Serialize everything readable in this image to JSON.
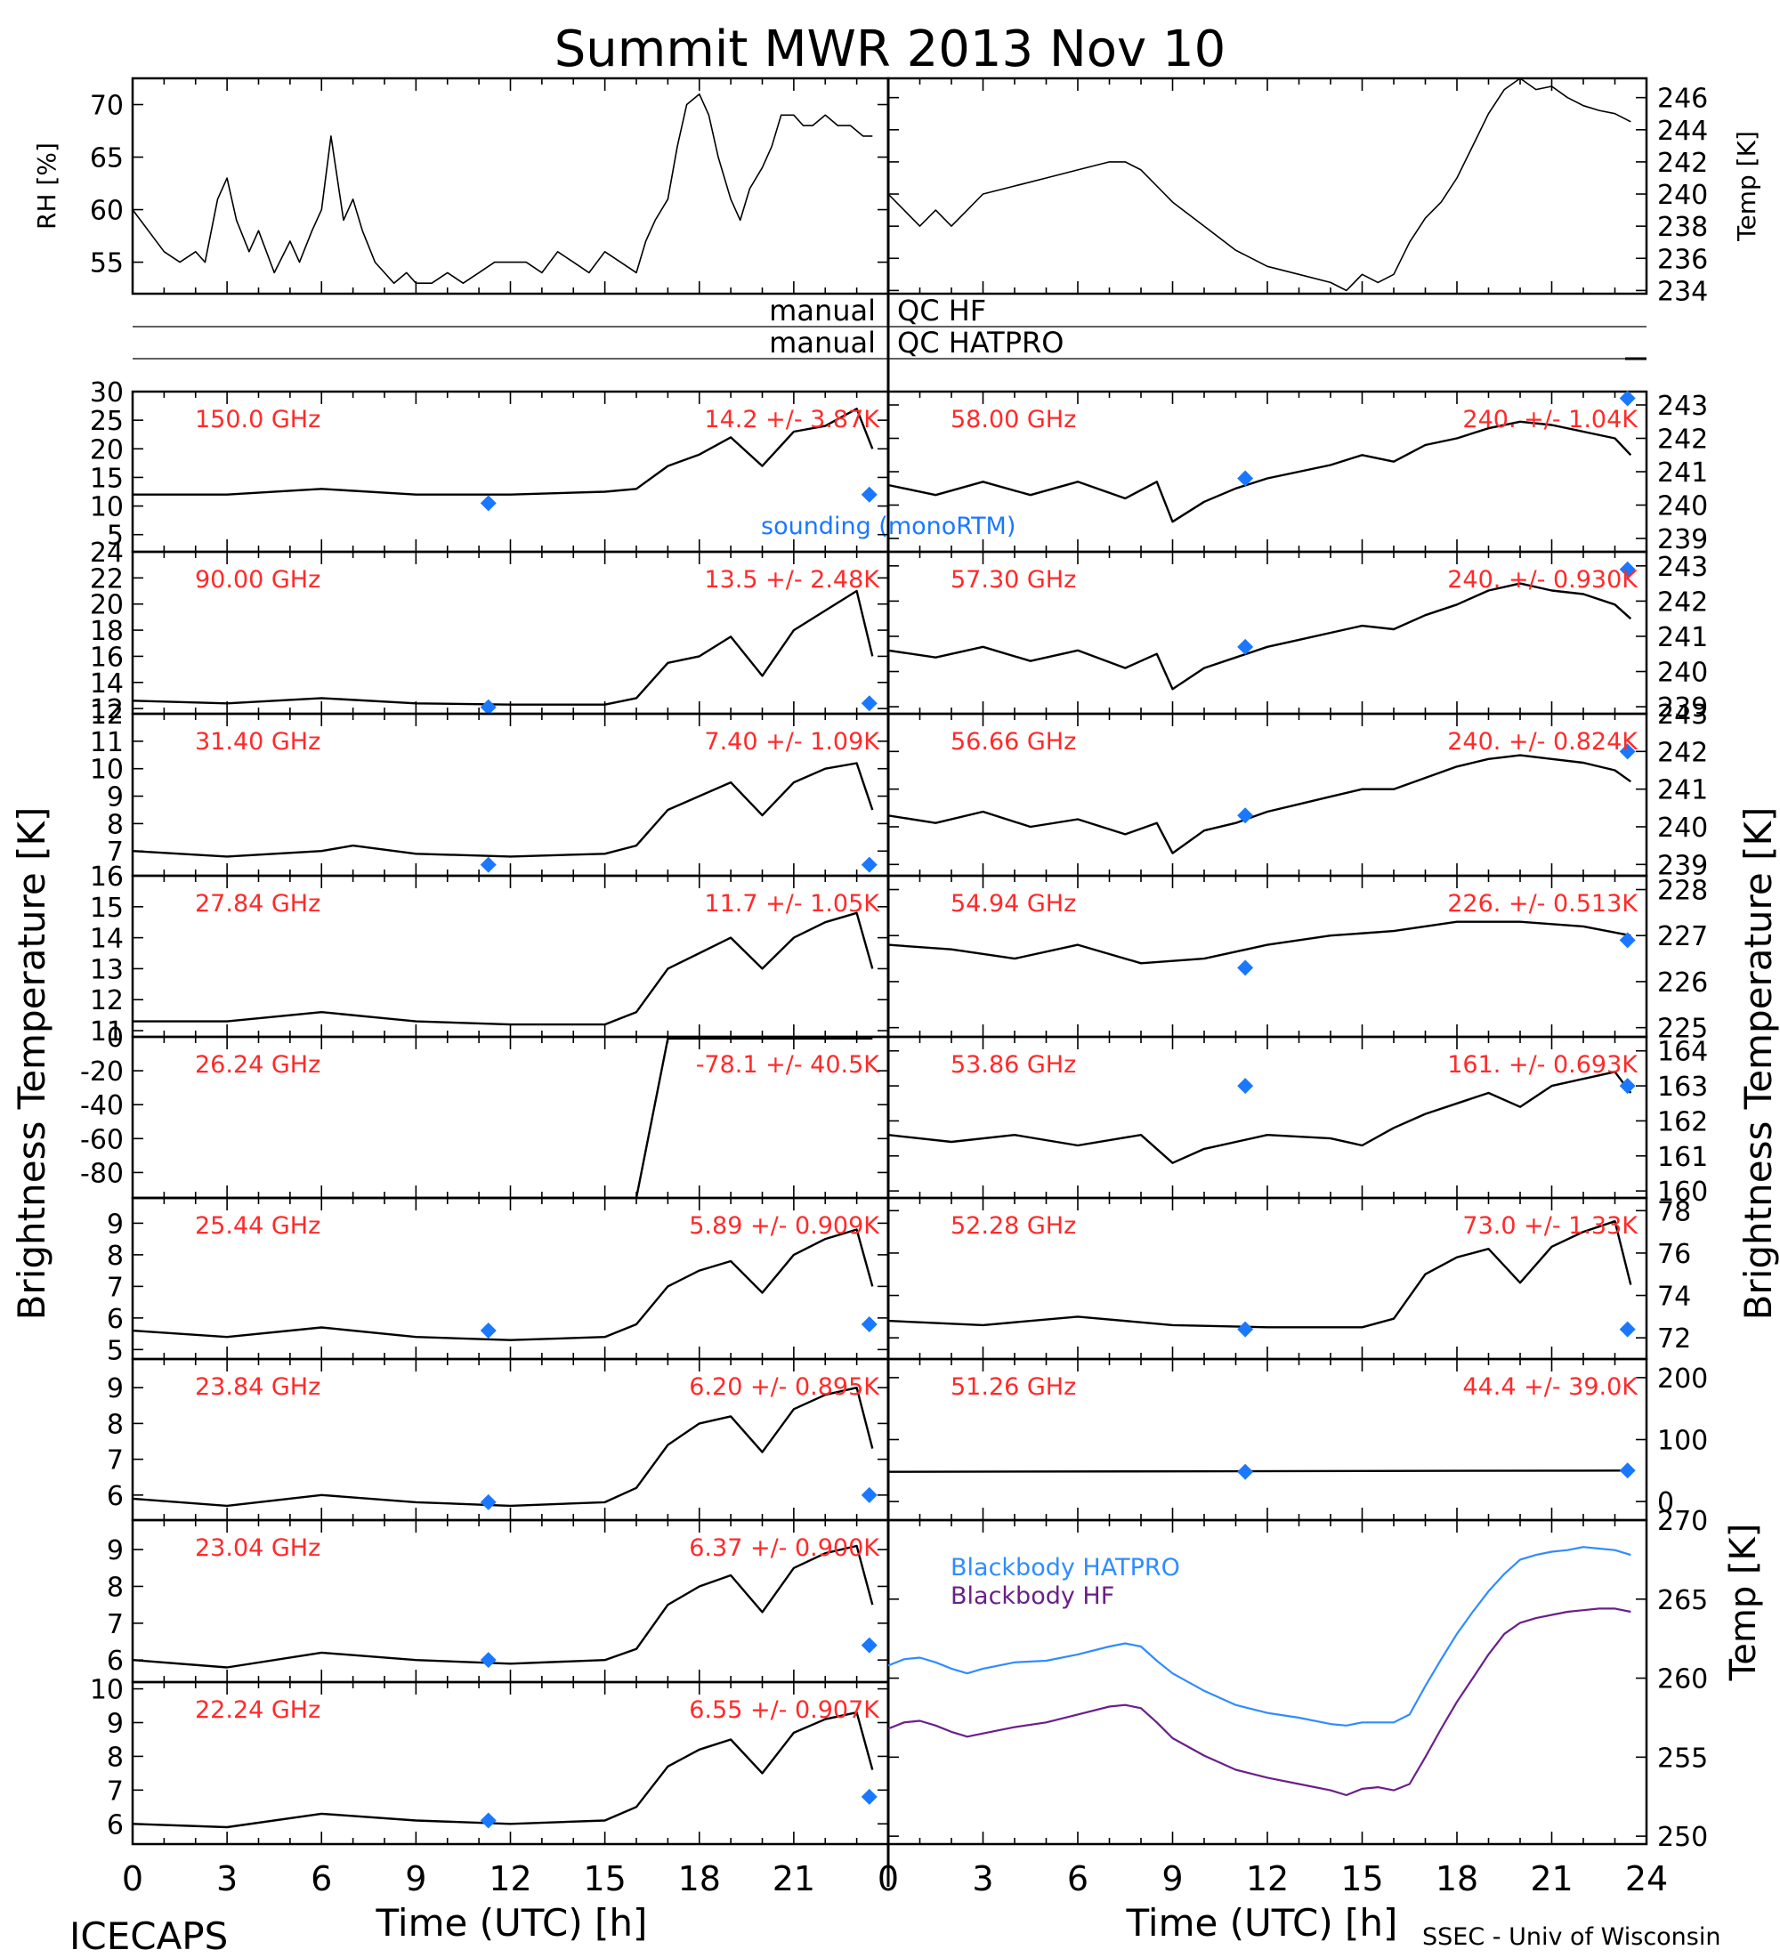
{
  "figure": {
    "title": "Summit MWR 2013 Nov 10",
    "footer_left": "ICECAPS",
    "footer_right": "SSEC - Univ of Wisconsin",
    "xlabel": "Time (UTC) [h]",
    "left_ylabel": "Brightness Temperature [K]",
    "right_ylabel": "Brightness Temperature [K]",
    "x_ticks": [
      "0",
      "3",
      "6",
      "9",
      "12",
      "15",
      "18",
      "21"
    ],
    "x_ticks_right_extra": "24",
    "qc_labels": {
      "manual_hf": "manual",
      "qc_hf": "QC HF",
      "manual_hatpro": "manual",
      "qc_hatpro": "QC HATPRO"
    },
    "sounding_label": "sounding (monoRTM)",
    "colors": {
      "text_red": "#ff2a2a",
      "sounding_blue": "#1a78ff",
      "data": "#000000",
      "bb_hatpro": "#2f8cff",
      "bb_hf": "#6b1f8a"
    }
  },
  "chart_data": [
    {
      "type": "line",
      "panel": "rh",
      "ylabel": "RH [%]",
      "ylim": [
        52,
        72.5
      ],
      "y_ticks": [
        55,
        60,
        65,
        70
      ],
      "xlim": [
        0,
        24
      ],
      "x": [
        0,
        0.5,
        1,
        1.5,
        2,
        2.3,
        2.7,
        3,
        3.3,
        3.7,
        4,
        4.5,
        5,
        5.3,
        5.7,
        6,
        6.3,
        6.7,
        7,
        7.3,
        7.7,
        8,
        8.3,
        8.7,
        9,
        9.5,
        10,
        10.5,
        11,
        11.5,
        12,
        12.5,
        13,
        13.5,
        14,
        14.5,
        15,
        15.5,
        16,
        16.3,
        16.6,
        17,
        17.3,
        17.6,
        18,
        18.3,
        18.6,
        19,
        19.3,
        19.6,
        20,
        20.3,
        20.6,
        21,
        21.3,
        21.6,
        22,
        22.4,
        22.8,
        23.2,
        23.5
      ],
      "values": [
        60,
        58,
        56,
        55,
        56,
        55,
        61,
        63,
        59,
        56,
        58,
        54,
        57,
        55,
        58,
        60,
        67,
        59,
        61,
        58,
        55,
        54,
        53,
        54,
        53,
        53,
        54,
        53,
        54,
        55,
        55,
        55,
        54,
        56,
        55,
        54,
        56,
        55,
        54,
        57,
        59,
        61,
        66,
        70,
        71,
        69,
        65,
        61,
        59,
        62,
        64,
        66,
        69,
        69,
        68,
        68,
        69,
        68,
        68,
        67,
        67
      ]
    },
    {
      "type": "line",
      "panel": "temp",
      "ylabel": "Temp [K]",
      "ylim": [
        233.8,
        247.2
      ],
      "y_ticks": [
        234,
        236,
        238,
        240,
        242,
        244,
        246
      ],
      "xlim": [
        0,
        24
      ],
      "x": [
        0,
        0.5,
        1,
        1.5,
        2,
        2.5,
        3,
        4,
        5,
        6,
        7,
        7.5,
        8,
        8.5,
        9,
        10,
        11,
        12,
        13,
        14,
        14.5,
        15,
        15.5,
        16,
        16.5,
        17,
        17.5,
        18,
        18.5,
        19,
        19.5,
        20,
        20.5,
        21,
        21.5,
        22,
        22.5,
        23,
        23.5
      ],
      "values": [
        240,
        239,
        238,
        239,
        238,
        239,
        240,
        240.5,
        241,
        241.5,
        242,
        242,
        241.5,
        240.5,
        239.5,
        238,
        236.5,
        235.5,
        235,
        234.5,
        234,
        235,
        234.5,
        235,
        237,
        238.5,
        239.5,
        241,
        243,
        245,
        246.5,
        247.2,
        246.5,
        246.7,
        246,
        245.5,
        245.2,
        245,
        244.5
      ]
    },
    {
      "type": "line",
      "panel": "channel",
      "side": "left",
      "label": "150.0 GHz",
      "stat": "14.2 +/- 3.87K",
      "ylim": [
        2,
        30
      ],
      "y_ticks": [
        5,
        10,
        15,
        20,
        25,
        30
      ],
      "x": [
        0,
        3,
        6,
        9,
        12,
        15,
        16,
        17,
        18,
        19,
        20,
        21,
        22,
        23,
        23.5
      ],
      "values": [
        12,
        12,
        13,
        12,
        12,
        12.5,
        13,
        17,
        19,
        22,
        17,
        23,
        24,
        27,
        20
      ],
      "sounding": [
        [
          11.3,
          10.5
        ],
        [
          23.4,
          12
        ]
      ]
    },
    {
      "type": "line",
      "panel": "channel",
      "side": "left",
      "label": "90.00 GHz",
      "stat": "13.5 +/- 2.48K",
      "ylim": [
        11.6,
        24
      ],
      "y_ticks": [
        12,
        14,
        16,
        18,
        20,
        22,
        24
      ],
      "x": [
        0,
        3,
        6,
        9,
        12,
        15,
        16,
        17,
        18,
        19,
        20,
        21,
        22,
        23,
        23.5
      ],
      "values": [
        12.6,
        12.4,
        12.8,
        12.4,
        12.3,
        12.3,
        12.8,
        15.5,
        16,
        17.5,
        14.5,
        18,
        19.5,
        21,
        16
      ],
      "sounding": [
        [
          11.3,
          12.1
        ],
        [
          23.4,
          12.4
        ]
      ]
    },
    {
      "type": "line",
      "panel": "channel",
      "side": "left",
      "label": "31.40 GHz",
      "stat": "7.40 +/- 1.09K",
      "ylim": [
        6.1,
        12
      ],
      "y_ticks": [
        7,
        8,
        9,
        10,
        11,
        12
      ],
      "x": [
        0,
        3,
        6,
        7,
        9,
        12,
        15,
        16,
        17,
        18,
        19,
        20,
        21,
        22,
        23,
        23.5
      ],
      "values": [
        7,
        6.8,
        7,
        7.2,
        6.9,
        6.8,
        6.9,
        7.2,
        8.5,
        9,
        9.5,
        8.3,
        9.5,
        10,
        10.2,
        8.5
      ],
      "sounding": [
        [
          11.3,
          6.5
        ],
        [
          23.4,
          6.5
        ]
      ]
    },
    {
      "type": "line",
      "panel": "channel",
      "side": "left",
      "label": "27.84 GHz",
      "stat": "11.7 +/- 1.05K",
      "ylim": [
        10.8,
        16
      ],
      "y_ticks": [
        11,
        12,
        13,
        14,
        15,
        16
      ],
      "x": [
        0,
        3,
        6,
        9,
        12,
        15,
        16,
        17,
        18,
        19,
        20,
        21,
        22,
        23,
        23.5
      ],
      "values": [
        11.3,
        11.3,
        11.6,
        11.3,
        11.2,
        11.2,
        11.6,
        13,
        13.5,
        14,
        13,
        14,
        14.5,
        14.8,
        13
      ],
      "sounding": []
    },
    {
      "type": "line",
      "panel": "channel",
      "side": "left",
      "label": "26.24 GHz",
      "stat": "-78.1 +/- 40.5K",
      "ylim": [
        -95,
        0
      ],
      "y_ticks": [
        -80,
        -60,
        -40,
        -20,
        0
      ],
      "x": [
        0,
        12,
        16,
        17,
        18,
        20,
        22,
        23.5
      ],
      "values": [
        -95,
        -95,
        -95,
        -1,
        -1,
        -1,
        -1,
        -1
      ],
      "sounding": []
    },
    {
      "type": "line",
      "panel": "channel",
      "side": "left",
      "label": "25.44 GHz",
      "stat": "5.89 +/- 0.909K",
      "ylim": [
        4.7,
        9.8
      ],
      "y_ticks": [
        5,
        6,
        7,
        8,
        9
      ],
      "x": [
        0,
        3,
        6,
        9,
        12,
        15,
        16,
        17,
        18,
        19,
        20,
        21,
        22,
        23,
        23.5
      ],
      "values": [
        5.6,
        5.4,
        5.7,
        5.4,
        5.3,
        5.4,
        5.8,
        7,
        7.5,
        7.8,
        6.8,
        8,
        8.5,
        8.8,
        7
      ],
      "sounding": [
        [
          11.3,
          5.6
        ],
        [
          23.4,
          5.8
        ]
      ]
    },
    {
      "type": "line",
      "panel": "channel",
      "side": "left",
      "label": "23.84 GHz",
      "stat": "6.20 +/- 0.895K",
      "ylim": [
        5.3,
        9.8
      ],
      "y_ticks": [
        6,
        7,
        8,
        9
      ],
      "x": [
        0,
        3,
        6,
        9,
        12,
        15,
        16,
        17,
        18,
        19,
        20,
        21,
        22,
        23,
        23.5
      ],
      "values": [
        5.9,
        5.7,
        6,
        5.8,
        5.7,
        5.8,
        6.2,
        7.4,
        8,
        8.2,
        7.2,
        8.4,
        8.8,
        9,
        7.3
      ],
      "sounding": [
        [
          11.3,
          5.8
        ],
        [
          23.4,
          6
        ]
      ]
    },
    {
      "type": "line",
      "panel": "channel",
      "side": "left",
      "label": "23.04 GHz",
      "stat": "6.37 +/- 0.900K",
      "ylim": [
        5.4,
        9.8
      ],
      "y_ticks": [
        6,
        7,
        8,
        9
      ],
      "x": [
        0,
        3,
        6,
        9,
        12,
        15,
        16,
        17,
        18,
        19,
        20,
        21,
        22,
        23,
        23.5
      ],
      "values": [
        6,
        5.8,
        6.2,
        6,
        5.9,
        6,
        6.3,
        7.5,
        8,
        8.3,
        7.3,
        8.5,
        8.9,
        9.1,
        7.5
      ],
      "sounding": [
        [
          11.3,
          6
        ],
        [
          23.4,
          6.4
        ]
      ]
    },
    {
      "type": "line",
      "panel": "channel",
      "side": "left",
      "label": "22.24 GHz",
      "stat": "6.55 +/- 0.907K",
      "ylim": [
        5.4,
        10.2
      ],
      "y_ticks": [
        6,
        7,
        8,
        9,
        10
      ],
      "x": [
        0,
        3,
        6,
        9,
        12,
        15,
        16,
        17,
        18,
        19,
        20,
        21,
        22,
        23,
        23.5
      ],
      "values": [
        6,
        5.9,
        6.3,
        6.1,
        6,
        6.1,
        6.5,
        7.7,
        8.2,
        8.5,
        7.5,
        8.7,
        9.1,
        9.3,
        7.6
      ],
      "sounding": [
        [
          11.3,
          6.1
        ],
        [
          23.4,
          6.8
        ]
      ]
    },
    {
      "type": "line",
      "panel": "channel",
      "side": "right",
      "label": "58.00 GHz",
      "stat": "240. +/- 1.04K",
      "ylim": [
        238.6,
        243.4
      ],
      "y_ticks": [
        239,
        240,
        241,
        242,
        243
      ],
      "x": [
        0,
        1.5,
        3,
        4.5,
        6,
        7.5,
        8.5,
        9,
        10,
        11,
        12,
        13,
        14,
        15,
        16,
        17,
        18,
        19,
        20,
        21,
        22,
        23,
        23.5
      ],
      "values": [
        240.6,
        240.3,
        240.7,
        240.3,
        240.7,
        240.2,
        240.7,
        239.5,
        240.1,
        240.5,
        240.8,
        241,
        241.2,
        241.5,
        241.3,
        241.8,
        242,
        242.3,
        242.5,
        242.4,
        242.2,
        242,
        241.5
      ],
      "sounding": [
        [
          11.3,
          240.8
        ],
        [
          23.4,
          243.2
        ]
      ]
    },
    {
      "type": "line",
      "panel": "channel",
      "side": "right",
      "label": "57.30 GHz",
      "stat": "240. +/- 0.930K",
      "ylim": [
        238.8,
        243.4
      ],
      "y_ticks": [
        239,
        240,
        241,
        242,
        243
      ],
      "x": [
        0,
        1.5,
        3,
        4.5,
        6,
        7.5,
        8.5,
        9,
        10,
        11,
        12,
        13,
        14,
        15,
        16,
        17,
        18,
        19,
        20,
        21,
        22,
        23,
        23.5
      ],
      "values": [
        240.6,
        240.4,
        240.7,
        240.3,
        240.6,
        240.1,
        240.5,
        239.5,
        240.1,
        240.4,
        240.7,
        240.9,
        241.1,
        241.3,
        241.2,
        241.6,
        241.9,
        242.3,
        242.5,
        242.3,
        242.2,
        241.9,
        241.5
      ],
      "sounding": [
        [
          11.3,
          240.7
        ],
        [
          23.4,
          242.9
        ]
      ]
    },
    {
      "type": "line",
      "panel": "channel",
      "side": "right",
      "label": "56.66 GHz",
      "stat": "240. +/- 0.824K",
      "ylim": [
        238.7,
        243
      ],
      "y_ticks": [
        239,
        240,
        241,
        242,
        243
      ],
      "x": [
        0,
        1.5,
        3,
        4.5,
        6,
        7.5,
        8.5,
        9,
        10,
        11,
        12,
        13,
        14,
        15,
        16,
        17,
        18,
        19,
        20,
        21,
        22,
        23,
        23.5
      ],
      "values": [
        240.3,
        240.1,
        240.4,
        240,
        240.2,
        239.8,
        240.1,
        239.3,
        239.9,
        240.1,
        240.4,
        240.6,
        240.8,
        241,
        241,
        241.3,
        241.6,
        241.8,
        241.9,
        241.8,
        241.7,
        241.5,
        241.2
      ],
      "sounding": [
        [
          11.3,
          240.3
        ],
        [
          23.4,
          242
        ]
      ]
    },
    {
      "type": "line",
      "panel": "channel",
      "side": "right",
      "label": "54.94 GHz",
      "stat": "226. +/- 0.513K",
      "ylim": [
        224.8,
        228.3
      ],
      "y_ticks": [
        225,
        226,
        227,
        228
      ],
      "x": [
        0,
        2,
        4,
        6,
        8,
        10,
        12,
        14,
        16,
        18,
        20,
        22,
        23.5
      ],
      "values": [
        226.8,
        226.7,
        226.5,
        226.8,
        226.4,
        226.5,
        226.8,
        227,
        227.1,
        227.3,
        227.3,
        227.2,
        227
      ],
      "sounding": [
        [
          11.3,
          226.3
        ],
        [
          23.4,
          226.9
        ]
      ]
    },
    {
      "type": "line",
      "panel": "channel",
      "side": "right",
      "label": "53.86 GHz",
      "stat": "161. +/- 0.693K",
      "ylim": [
        159.8,
        164.4
      ],
      "y_ticks": [
        160,
        161,
        162,
        163,
        164
      ],
      "x": [
        0,
        2,
        4,
        6,
        8,
        9,
        10,
        12,
        14,
        15,
        16,
        17,
        18,
        19,
        20,
        21,
        22,
        23,
        23.5
      ],
      "values": [
        161.6,
        161.4,
        161.6,
        161.3,
        161.6,
        160.8,
        161.2,
        161.6,
        161.5,
        161.3,
        161.8,
        162.2,
        162.5,
        162.8,
        162.4,
        163,
        163.2,
        163.4,
        162.8
      ],
      "sounding": [
        [
          11.3,
          163
        ],
        [
          23.4,
          163
        ]
      ]
    },
    {
      "type": "line",
      "panel": "channel",
      "side": "right",
      "label": "52.28 GHz",
      "stat": "73.0 +/- 1.33K",
      "ylim": [
        71,
        78.6
      ],
      "y_ticks": [
        72,
        74,
        76,
        78
      ],
      "x": [
        0,
        3,
        6,
        9,
        12,
        15,
        16,
        17,
        18,
        19,
        20,
        21,
        22,
        23,
        23.5
      ],
      "values": [
        72.8,
        72.6,
        73,
        72.6,
        72.5,
        72.5,
        72.9,
        75,
        75.8,
        76.2,
        74.6,
        76.3,
        77,
        77.5,
        74.5
      ],
      "sounding": [
        [
          11.3,
          72.4
        ],
        [
          23.4,
          72.4
        ]
      ]
    },
    {
      "type": "line",
      "panel": "channel",
      "side": "right",
      "label": "51.26 GHz",
      "stat": "44.4 +/- 39.0K",
      "ylim": [
        -30,
        230
      ],
      "y_ticks": [
        0,
        100,
        200
      ],
      "x": [
        0,
        23.5
      ],
      "values": [
        48,
        50
      ],
      "sounding": [
        [
          11.3,
          48
        ],
        [
          23.4,
          50
        ]
      ]
    },
    {
      "type": "line",
      "panel": "blackbody",
      "ylabel": "Temp [K]",
      "ylim": [
        249.5,
        270
      ],
      "y_ticks": [
        250,
        255,
        260,
        265,
        270
      ],
      "xlim": [
        0,
        24
      ],
      "x": [
        0,
        0.5,
        1,
        1.5,
        2,
        2.5,
        3,
        4,
        5,
        6,
        7,
        7.5,
        8,
        8.5,
        9,
        10,
        11,
        12,
        13,
        14,
        14.5,
        15,
        15.5,
        16,
        16.5,
        17,
        17.5,
        18,
        18.5,
        19,
        19.5,
        20,
        20.5,
        21,
        21.5,
        22,
        22.5,
        23,
        23.5
      ],
      "series": [
        {
          "name": "Blackbody HATPRO",
          "values": [
            260.8,
            261.2,
            261.3,
            261,
            260.6,
            260.3,
            260.6,
            261,
            261.1,
            261.5,
            262,
            262.2,
            262,
            261.1,
            260.3,
            259.2,
            258.3,
            257.8,
            257.5,
            257.1,
            257,
            257.2,
            257.2,
            257.2,
            257.7,
            259.5,
            261.2,
            262.8,
            264.2,
            265.5,
            266.6,
            267.5,
            267.8,
            268,
            268.1,
            268.3,
            268.2,
            268.1,
            267.8
          ]
        },
        {
          "name": "Blackbody HF",
          "values": [
            256.8,
            257.2,
            257.3,
            257,
            256.6,
            256.3,
            256.5,
            256.9,
            257.2,
            257.7,
            258.2,
            258.3,
            258.1,
            257.2,
            256.2,
            255.1,
            254.2,
            253.7,
            253.3,
            252.9,
            252.6,
            253,
            253.1,
            252.9,
            253.3,
            255,
            256.8,
            258.5,
            260,
            261.5,
            262.8,
            263.5,
            263.8,
            264,
            264.2,
            264.3,
            264.4,
            264.4,
            264.2
          ]
        }
      ]
    }
  ]
}
